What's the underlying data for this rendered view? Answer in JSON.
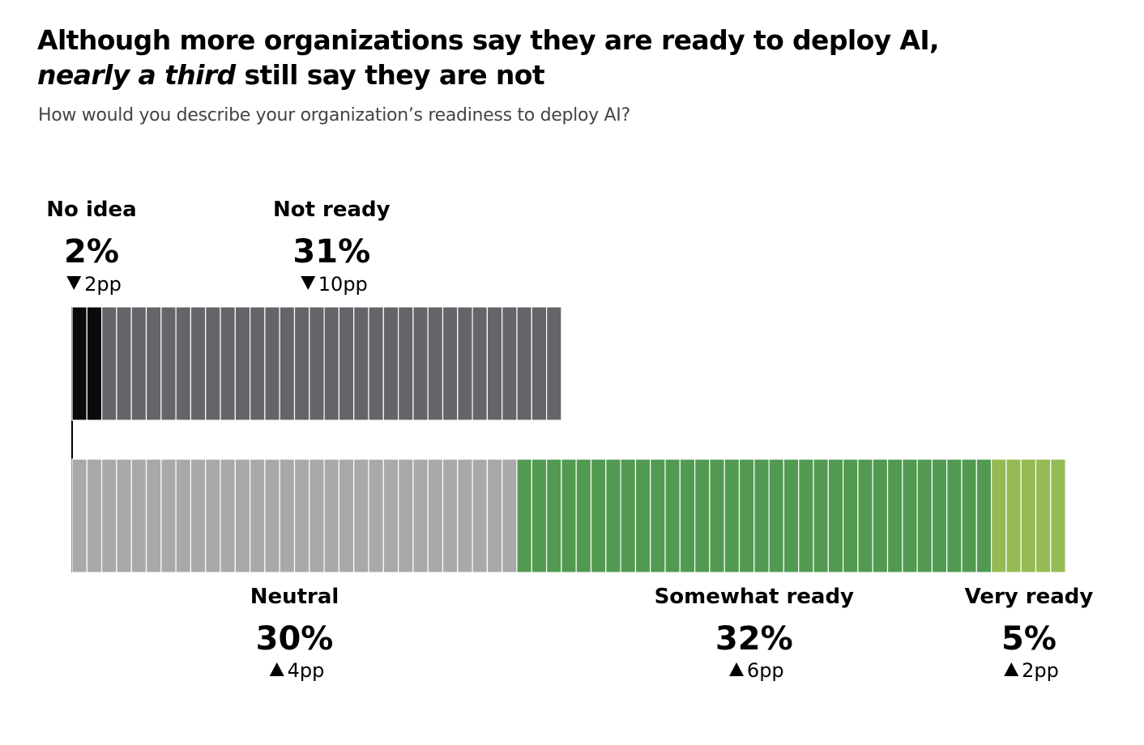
{
  "header": {
    "title_line1": "Although more organizations say they are ready to deploy AI,",
    "title_line2_emphasis": "nearly a third",
    "title_line2_rest": " still say they are not",
    "subtitle": "How would you describe your organization’s readiness to deploy AI?"
  },
  "colors": {
    "no_idea": "#0a0a0a",
    "not_ready": "#646569",
    "neutral": "#a8a9ab",
    "somewhat_ready": "#529a52",
    "very_ready": "#95bb55"
  },
  "chart_data": {
    "type": "bar",
    "title": "",
    "xlabel": "",
    "ylabel": "",
    "unit": "%",
    "layout": "two stacked rows of unit segments",
    "categories": [
      "No idea",
      "Not ready",
      "Neutral",
      "Somewhat ready",
      "Very ready"
    ],
    "values": [
      2,
      31,
      30,
      32,
      5
    ],
    "changes_pp": [
      -2,
      -10,
      4,
      6,
      2
    ],
    "series": [
      {
        "row": "top",
        "segments": [
          {
            "label": "No idea",
            "value": 2,
            "pct": "2%",
            "change": -2,
            "change_label": "2pp",
            "color": "#0a0a0a"
          },
          {
            "label": "Not ready",
            "value": 31,
            "pct": "31%",
            "change": -10,
            "change_label": "10pp",
            "color": "#646569"
          }
        ]
      },
      {
        "row": "bottom",
        "segments": [
          {
            "label": "Neutral",
            "value": 30,
            "pct": "30%",
            "change": 4,
            "change_label": "4pp",
            "color": "#a8a9ab"
          },
          {
            "label": "Somewhat ready",
            "value": 32,
            "pct": "32%",
            "change": 6,
            "change_label": "6pp",
            "color": "#529a52"
          },
          {
            "label": "Very ready",
            "value": 5,
            "pct": "5%",
            "change": 2,
            "change_label": "2pp",
            "color": "#95bb55"
          }
        ]
      }
    ],
    "grid": false,
    "legend": "none"
  }
}
